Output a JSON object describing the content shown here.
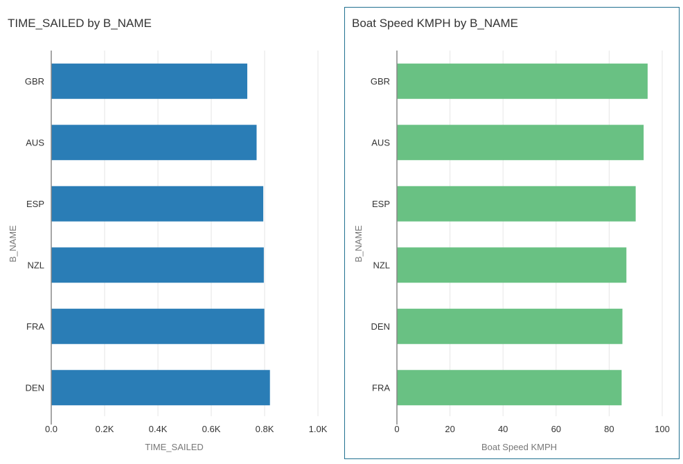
{
  "chart_data": [
    {
      "type": "bar",
      "orientation": "horizontal",
      "title": "TIME_SAILED by B_NAME",
      "xlabel": "TIME_SAILED",
      "ylabel": "B_NAME",
      "categories": [
        "GBR",
        "AUS",
        "ESP",
        "NZL",
        "FRA",
        "DEN"
      ],
      "values": [
        735,
        770,
        795,
        797,
        799,
        820
      ],
      "xlim": [
        0,
        1000
      ],
      "xticks": [
        0,
        200,
        400,
        600,
        800,
        1000
      ],
      "xtick_labels": [
        "0.0",
        "0.2K",
        "0.4K",
        "0.6K",
        "0.8K",
        "1.0K"
      ],
      "grid": true,
      "color": "#2a7db6"
    },
    {
      "type": "bar",
      "orientation": "horizontal",
      "title": "Boat Speed KMPH by B_NAME",
      "xlabel": "Boat Speed KMPH",
      "ylabel": "B_NAME",
      "categories": [
        "GBR",
        "AUS",
        "ESP",
        "NZL",
        "DEN",
        "FRA"
      ],
      "values": [
        94.5,
        93,
        90,
        86.5,
        85,
        84.7
      ],
      "xlim": [
        0,
        100
      ],
      "xticks": [
        0,
        20,
        40,
        60,
        80,
        100
      ],
      "xtick_labels": [
        "0",
        "20",
        "40",
        "60",
        "80",
        "100"
      ],
      "grid": true,
      "color": "#69c183"
    }
  ]
}
